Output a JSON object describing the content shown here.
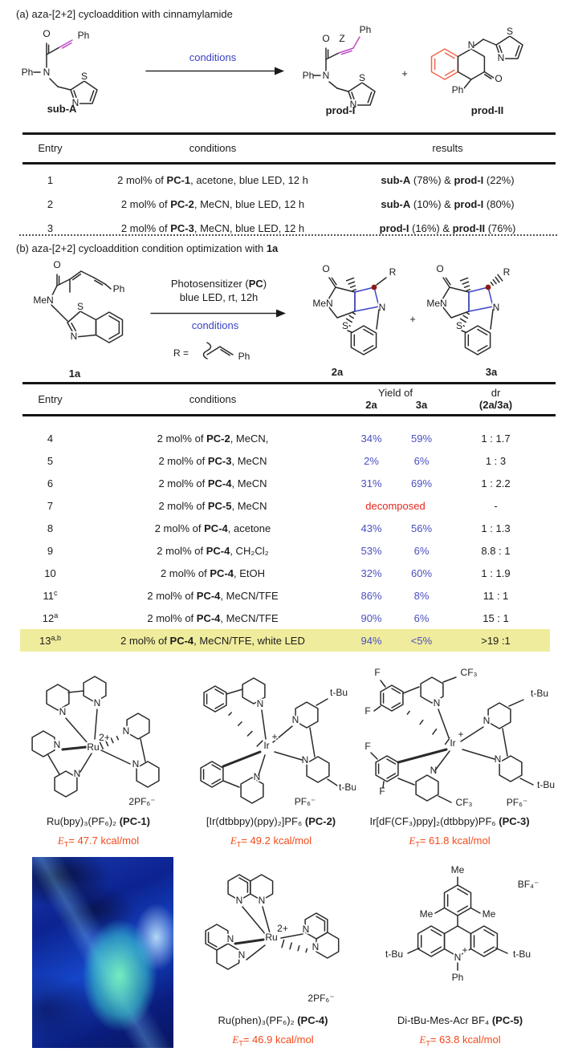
{
  "colors": {
    "blue_text": "#3b43c4",
    "yield_blue": "#4a4fc0",
    "magenta": "#bb4bc2",
    "salmon_red": "#f2664d",
    "et_red": "#f24a1c",
    "warn_red": "#e8261e",
    "highlight_yellow": "#f0ec9d",
    "dark_red_dot": "#8b1a1a"
  },
  "g": {
    "O": "O",
    "N": "N",
    "S": "S",
    "Ph": "Ph",
    "Me": "Me",
    "MeN": "MeN",
    "tBu": "t-Bu",
    "CF3": "CF₃",
    "F": "F",
    "R": "R",
    "Z": "Z",
    "plus": "+",
    "Ru": "Ru",
    "Ir": "Ir",
    "q2": "2+",
    "q1": "+",
    "PF6": "PF₆⁻",
    "PF6x2": "2PF₆⁻",
    "BF4": "BF₄⁻",
    "E": "E",
    "T": "T"
  },
  "section_a": {
    "title": "(a) aza-[2+2] cycloaddition with cinnamylamide",
    "arrow_label": "conditions",
    "substrate": "sub-A",
    "product1": "prod-I",
    "product2": "prod-II",
    "plus": "+"
  },
  "table_a": {
    "headers": [
      "Entry",
      "conditions",
      "results"
    ],
    "rows": [
      {
        "entry": "1",
        "cond": [
          {
            "t": "2 mol% of "
          },
          {
            "b": "PC-1"
          },
          {
            "t": ", acetone, blue LED, 12 h"
          }
        ],
        "res": [
          {
            "b": "sub-A"
          },
          {
            "t": " (78%) & "
          },
          {
            "b": "prod-I"
          },
          {
            "t": " (22%)"
          }
        ]
      },
      {
        "entry": "2",
        "cond": [
          {
            "t": "2 mol% of "
          },
          {
            "b": "PC-2"
          },
          {
            "t": ", MeCN, blue LED, 12 h"
          }
        ],
        "res": [
          {
            "b": "sub-A"
          },
          {
            "t": " (10%) & "
          },
          {
            "b": "prod-I"
          },
          {
            "t": " (80%)"
          }
        ]
      },
      {
        "entry": "3",
        "cond": [
          {
            "t": "2 mol% of "
          },
          {
            "b": "PC-3"
          },
          {
            "t": ", MeCN, blue LED, 12 h"
          }
        ],
        "res": [
          {
            "b": "prod-I"
          },
          {
            "t": " (16%) & "
          },
          {
            "b": "prod-II"
          },
          {
            "t": " (76%)"
          }
        ]
      }
    ]
  },
  "section_b": {
    "title_pre": "(b) aza-[2+2] cycloaddition condition optimization with ",
    "title_bold": "1a",
    "arrow_top_pre": "Photosensitizer (",
    "arrow_top_bold": "PC",
    "arrow_top_post": ")",
    "arrow_line2": "blue LED, rt, 12h",
    "arrow_below": "conditions",
    "r_label": "R = ",
    "r_ph": "Ph",
    "substrate": "1a",
    "product1": "2a",
    "product2": "3a",
    "plus": "+"
  },
  "table_b": {
    "headers": {
      "entry": "Entry",
      "conditions": "conditions",
      "yield_of": "Yield of",
      "col_2a": "2a",
      "col_3a": "3a",
      "dr_1": "dr",
      "dr_2": "(2a/3a)"
    },
    "rows": [
      {
        "entry": "4",
        "sup": "",
        "cond": [
          {
            "t": "2 mol% of "
          },
          {
            "b": "PC-2"
          },
          {
            "t": ", MeCN,"
          }
        ],
        "y2a": "34%",
        "y3a": "59%",
        "dr": "1 : 1.7"
      },
      {
        "entry": "5",
        "sup": "",
        "cond": [
          {
            "t": "2 mol% of "
          },
          {
            "b": "PC-3"
          },
          {
            "t": ", MeCN"
          }
        ],
        "y2a": "2%",
        "y3a": "6%",
        "dr": "1 : 3"
      },
      {
        "entry": "6",
        "sup": "",
        "cond": [
          {
            "t": "2 mol% of "
          },
          {
            "b": "PC-4"
          },
          {
            "t": ", MeCN"
          }
        ],
        "y2a": "31%",
        "y3a": "69%",
        "dr": "1 : 2.2"
      },
      {
        "entry": "7",
        "sup": "",
        "cond": [
          {
            "t": "2 mol% of "
          },
          {
            "b": "PC-5"
          },
          {
            "t": ", MeCN"
          }
        ],
        "decomposed": "decomposed",
        "dr": "-"
      },
      {
        "entry": "8",
        "sup": "",
        "cond": [
          {
            "t": "2 mol% of "
          },
          {
            "b": "PC-4"
          },
          {
            "t": ", acetone"
          }
        ],
        "y2a": "43%",
        "y3a": "56%",
        "dr": "1 : 1.3"
      },
      {
        "entry": "9",
        "sup": "",
        "cond": [
          {
            "t": "2 mol% of "
          },
          {
            "b": "PC-4"
          },
          {
            "t": ", CH₂Cl₂"
          }
        ],
        "y2a": "53%",
        "y3a": "6%",
        "dr": "8.8 : 1"
      },
      {
        "entry": "10",
        "sup": "",
        "cond": [
          {
            "t": "2 mol% of "
          },
          {
            "b": "PC-4"
          },
          {
            "t": ", EtOH"
          }
        ],
        "y2a": "32%",
        "y3a": "60%",
        "dr": "1 : 1.9"
      },
      {
        "entry": "11",
        "sup": "c",
        "cond": [
          {
            "t": "2 mol% of "
          },
          {
            "b": "PC-4"
          },
          {
            "t": ", MeCN/TFE"
          }
        ],
        "y2a": "86%",
        "y3a": "8%",
        "dr": "11 : 1"
      },
      {
        "entry": "12",
        "sup": "a",
        "cond": [
          {
            "t": "2 mol% of "
          },
          {
            "b": "PC-4"
          },
          {
            "t": ", MeCN/TFE"
          }
        ],
        "y2a": "90%",
        "y3a": "6%",
        "dr": "15 : 1"
      },
      {
        "entry": "13",
        "sup": "a,b",
        "cond": [
          {
            "t": "2 mol% of "
          },
          {
            "b": "PC-4"
          },
          {
            "t": ", MeCN/TFE, white LED"
          }
        ],
        "y2a": "94%",
        "y3a": "<5%",
        "dr": ">19 :1",
        "highlight": true
      }
    ]
  },
  "catalysts": [
    {
      "formula": "Ru(bpy)₃(PF₆)₂ ",
      "name": "(PC-1)",
      "et": "= 47.7 kcal/mol"
    },
    {
      "formula": "[Ir(dtbbpy)(ppy)₂]PF₆ ",
      "name": "(PC-2)",
      "et": "= 49.2 kcal/mol"
    },
    {
      "formula": "Ir[dF(CF₃)ppy]₂(dtbbpy)PF₆ ",
      "name": "(PC-3)",
      "et": "= 61.8 kcal/mol"
    },
    {
      "formula": "Ru(phen)₃(PF₆)₂ ",
      "name": "(PC-4)",
      "et": "= 46.9 kcal/mol"
    },
    {
      "formula": "Di-tBu-Mes-Acr BF₄ ",
      "name": "(PC-5)",
      "et": "= 63.8 kcal/mol"
    }
  ],
  "photo": {
    "description": "reaction vial under blue LED irradiation"
  }
}
